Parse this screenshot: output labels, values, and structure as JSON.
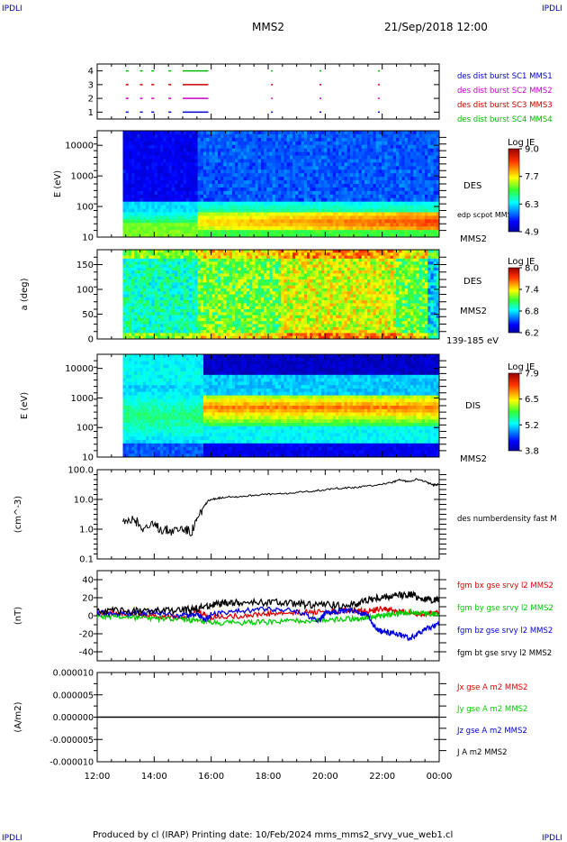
{
  "header": {
    "corner_tl": "IPDLI",
    "corner_tr": "IPDLI",
    "corner_bl": "IPDLI",
    "corner_br": "IPDLI",
    "title": "MMS2",
    "datetime": "21/Sep/2018 12:00"
  },
  "footer": {
    "text": "Produced by cl (IRAP)   Printing date: 10/Feb/2024   mms_mms2_srvy_vue_web1.cl"
  },
  "chart_data": [
    {
      "type": "scatter",
      "panel": "burst",
      "y_ticks": [
        "1",
        "2",
        "3",
        "4"
      ],
      "ylim": [
        0.5,
        4.5
      ],
      "legend": [
        {
          "name": "des dist burst SC1 MMS1",
          "color": "#0000cc"
        },
        {
          "name": "des dist burst SC2 MMS2",
          "color": "#cc00cc"
        },
        {
          "name": "des dist burst SC3 MMS3",
          "color": "#cc0000"
        },
        {
          "name": "des dist burst SC4 MMS4",
          "color": "#00bb00"
        }
      ],
      "intervals_hours": [
        [
          13.0,
          13.1
        ],
        [
          13.5,
          13.6
        ],
        [
          13.9,
          14.0
        ],
        [
          14.5,
          14.6
        ],
        [
          15.0,
          15.9
        ],
        [
          18.1,
          18.15
        ],
        [
          19.8,
          19.85
        ],
        [
          21.85,
          21.9
        ]
      ]
    },
    {
      "type": "heatmap",
      "panel": "DES energy spectrogram",
      "ylabel": "E (eV)",
      "y_ticks": [
        "10",
        "100",
        "1000",
        "10000"
      ],
      "colorbar_title": "Log JE",
      "colorbar_ticks": [
        "9.0",
        "7.7",
        "6.3",
        "4.9"
      ],
      "colorbar_range": [
        4.9,
        9.0
      ],
      "side_label": "DES",
      "overlay_label": "edp scpot MMS2",
      "sc_label": "MMS2",
      "data_start_hour": 12.9
    },
    {
      "type": "heatmap",
      "panel": "DES pitch angle",
      "ylabel": "a (deg)",
      "y_ticks": [
        "0",
        "50",
        "100",
        "150"
      ],
      "ylim": [
        0,
        180
      ],
      "colorbar_title": "Log JE",
      "colorbar_ticks": [
        "8.0",
        "7.4",
        "6.8",
        "6.2"
      ],
      "colorbar_range": [
        6.2,
        8.0
      ],
      "side_label": "DES",
      "sc_label": "MMS2",
      "energy_band": "139-185 eV"
    },
    {
      "type": "heatmap",
      "panel": "DIS energy spectrogram",
      "ylabel": "E (eV)",
      "y_ticks": [
        "10",
        "100",
        "1000",
        "10000"
      ],
      "colorbar_title": "Log JE",
      "colorbar_ticks": [
        "7.9",
        "6.5",
        "5.2",
        "3.8"
      ],
      "colorbar_range": [
        3.8,
        7.9
      ],
      "side_label": "DIS",
      "sc_label": "MMS2"
    },
    {
      "type": "line",
      "panel": "density",
      "ylabel": "(cm^-3)",
      "y_ticks": [
        "0.1",
        "1.0",
        "10.0",
        "100.0"
      ],
      "ylim": [
        0.1,
        100
      ],
      "log_y": true,
      "series": [
        {
          "name": "des numberdensity fast M",
          "color": "#000000",
          "x": [
            12.9,
            13.3,
            13.6,
            14.0,
            14.3,
            14.6,
            15.0,
            15.3,
            15.5,
            15.7,
            15.9,
            16.2,
            16.5,
            17.0,
            17.5,
            18.0,
            18.5,
            19.0,
            19.5,
            20.0,
            20.5,
            21.0,
            21.5,
            22.0,
            22.3,
            22.6,
            22.9,
            23.2,
            23.5,
            23.8,
            24.0
          ],
          "values": [
            1.5,
            2.0,
            1.2,
            1.3,
            1.0,
            0.9,
            1.1,
            0.8,
            2.0,
            5.0,
            9.0,
            11.0,
            12.0,
            12.5,
            14.0,
            15.0,
            15.5,
            17.0,
            19.0,
            21.0,
            24.0,
            25.0,
            28.0,
            33.0,
            36.0,
            45.0,
            40.0,
            48.0,
            40.0,
            30.0,
            33.0
          ]
        }
      ]
    },
    {
      "type": "line",
      "panel": "magnetic field",
      "ylabel": "(nT)",
      "y_ticks": [
        "-40",
        "-20",
        "0",
        "20",
        "40"
      ],
      "ylim": [
        -50,
        50
      ],
      "series": [
        {
          "name": "fgm bx gse srvy l2 MMS2",
          "color": "#dd0000",
          "x": [
            12.0,
            13.0,
            14.0,
            15.0,
            15.5,
            16.0,
            17.0,
            18.0,
            19.0,
            20.0,
            21.0,
            21.5,
            22.0,
            22.5,
            23.0,
            23.5,
            24.0
          ],
          "values": [
            4,
            2,
            0,
            -2,
            5,
            -2,
            0,
            2,
            3,
            5,
            6,
            5,
            8,
            5,
            3,
            2,
            4
          ]
        },
        {
          "name": "fgm by gse srvy l2 MMS2",
          "color": "#00cc00",
          "x": [
            12.0,
            13.0,
            14.0,
            15.0,
            15.5,
            16.0,
            17.0,
            18.0,
            19.0,
            20.0,
            21.0,
            21.5,
            22.0,
            22.5,
            23.0,
            23.5,
            24.0
          ],
          "values": [
            0,
            -1,
            -3,
            -4,
            -6,
            -8,
            -8,
            -7,
            -6,
            -5,
            -3,
            -2,
            0,
            2,
            4,
            3,
            2
          ]
        },
        {
          "name": "fgm bz gse srvy l2 MMS2",
          "color": "#0000dd",
          "x": [
            12.0,
            13.0,
            14.0,
            15.0,
            15.5,
            15.8,
            16.0,
            17.0,
            18.0,
            19.0,
            19.8,
            20.0,
            20.5,
            21.0,
            21.5,
            21.8,
            22.0,
            22.5,
            23.0,
            23.5,
            24.0
          ],
          "values": [
            3,
            2,
            4,
            0,
            2,
            -5,
            2,
            5,
            8,
            5,
            -5,
            3,
            5,
            6,
            0,
            -15,
            -18,
            -20,
            -25,
            -15,
            -10
          ]
        },
        {
          "name": "fgm bt gse srvy l2 MMS2",
          "color": "#000000",
          "x": [
            12.0,
            13.0,
            14.0,
            15.0,
            15.5,
            16.0,
            16.5,
            17.0,
            18.0,
            19.0,
            20.0,
            21.0,
            21.5,
            22.0,
            22.5,
            23.0,
            23.5,
            24.0
          ],
          "values": [
            6,
            5,
            5,
            6,
            8,
            12,
            14,
            14,
            15,
            13,
            12,
            12,
            18,
            20,
            22,
            24,
            18,
            17
          ]
        }
      ]
    },
    {
      "type": "line",
      "panel": "current density",
      "ylabel": "(A/m2)",
      "y_ticks": [
        "-0.000010",
        "-0.000005",
        "0.000000",
        "0.000005",
        "0.000010"
      ],
      "ylim": [
        -1e-05,
        1e-05
      ],
      "series": [
        {
          "name": "Jx gse A m2 MMS2",
          "color": "#dd0000"
        },
        {
          "name": "Jy gse A m2 MMS2",
          "color": "#00cc00"
        },
        {
          "name": "Jz gse A m2 MMS2",
          "color": "#0000dd"
        },
        {
          "name": "J A m2 MMS2",
          "color": "#000000",
          "x": [
            12.0,
            24.0
          ],
          "values": [
            0,
            0
          ]
        }
      ]
    }
  ],
  "x_axis": {
    "tick_labels": [
      "12:00",
      "14:00",
      "16:00",
      "18:00",
      "20:00",
      "22:00",
      "00:00"
    ],
    "range_hours": [
      12,
      24
    ]
  }
}
